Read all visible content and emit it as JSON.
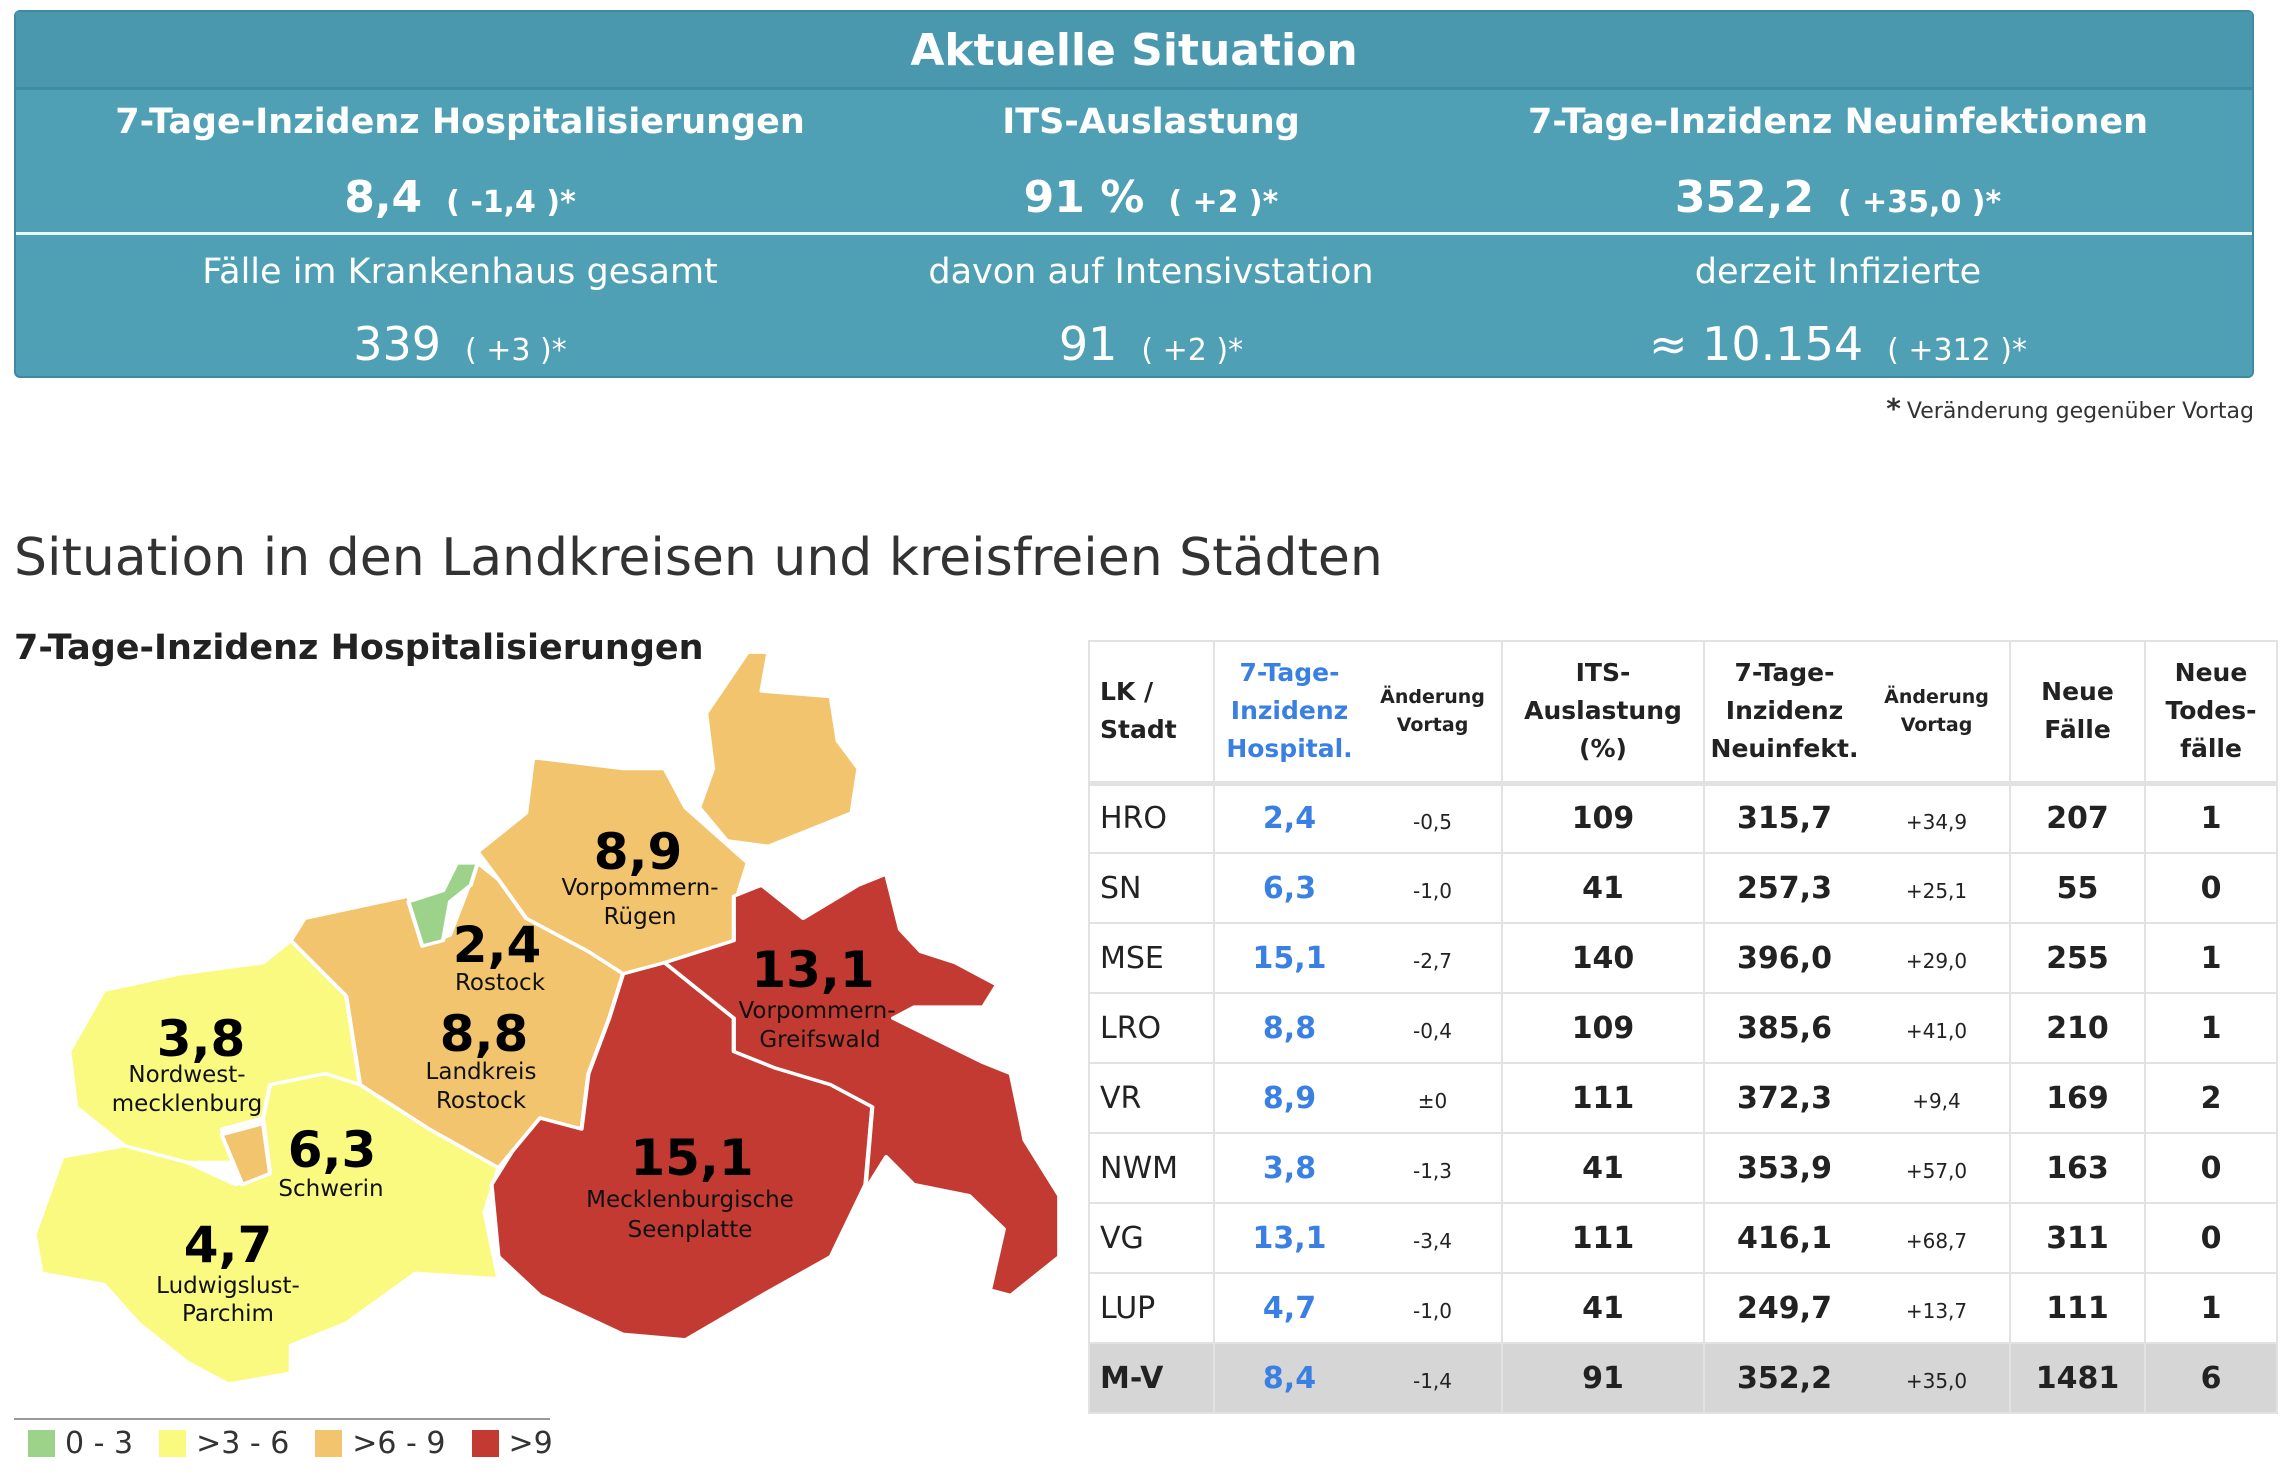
{
  "summary": {
    "title": "Aktuelle Situation",
    "kpis": [
      {
        "label": "7-Tage-Inzidenz Hospitalisierungen",
        "value": "8,4",
        "change": "( -1,4 )*"
      },
      {
        "label": "ITS-Auslastung",
        "value": "91 %",
        "change": "( +2 )*"
      },
      {
        "label": "7-Tage-Inzidenz Neuinfektionen",
        "value": "352,2",
        "change": "( +35,0 )*"
      }
    ],
    "stats": [
      {
        "label": "Fälle im Krankenhaus gesamt",
        "value": "339",
        "change": "( +3 )*"
      },
      {
        "label": "davon auf Intensivstation",
        "value": "91",
        "change": "( +2 )*"
      },
      {
        "label": "derzeit Infizierte",
        "value": "≈ 10.154",
        "change": "( +312 )*"
      }
    ],
    "footnote_mark": "*",
    "footnote": "Veränderung gegenüber Vortag"
  },
  "section_title": "Situation in den Landkreisen und kreisfreien Städten",
  "map": {
    "title": "7-Tage-Inzidenz Hospitalisierungen",
    "regions": [
      {
        "id": "VR",
        "value": "8,9",
        "name1": "Vorpommern-",
        "name2": "Rügen",
        "color": "#f2c46e"
      },
      {
        "id": "HRO",
        "value": "2,4",
        "name1": "Rostock",
        "name2": "",
        "color": "#9dd28a"
      },
      {
        "id": "LRO",
        "value": "8,8",
        "name1": "Landkreis",
        "name2": "Rostock",
        "color": "#f2c46e"
      },
      {
        "id": "NWM",
        "value": "3,8",
        "name1": "Nordwest-",
        "name2": "mecklenburg",
        "color": "#fafa80"
      },
      {
        "id": "SN",
        "value": "6,3",
        "name1": "Schwerin",
        "name2": "",
        "color": "#f2c46e"
      },
      {
        "id": "LUP",
        "value": "4,7",
        "name1": "Ludwigslust-",
        "name2": "Parchim",
        "color": "#fafa80"
      },
      {
        "id": "MSE",
        "value": "15,1",
        "name1": "Mecklenburgische",
        "name2": "Seenplatte",
        "color": "#c23a31"
      },
      {
        "id": "VG",
        "value": "13,1",
        "name1": "Vorpommern-",
        "name2": "Greifswald",
        "color": "#c23a31"
      }
    ],
    "legend": [
      {
        "label": "0 - 3",
        "color": "#9dd28a"
      },
      {
        "label": ">3 - 6",
        "color": "#fafa80"
      },
      {
        "label": ">6 - 9",
        "color": "#f2c46e"
      },
      {
        "label": ">9",
        "color": "#c23a31"
      }
    ]
  },
  "table": {
    "headers": {
      "lk": "LK / Stadt",
      "hosp": "7-Tage-Inzidenz Hospital.",
      "hosp_chg": "Änderung Vortag",
      "its": "ITS-Auslastung (%)",
      "neu": "7-Tage-Inzidenz Neuinfekt.",
      "neu_chg": "Änderung Vortag",
      "faelle": "Neue Fälle",
      "tod": "Neue Todes-fälle"
    },
    "rows": [
      {
        "lk": "HRO",
        "hosp": "2,4",
        "hosp_chg": "-0,5",
        "its": "109",
        "neu": "315,7",
        "neu_chg": "+34,9",
        "faelle": "207",
        "tod": "1"
      },
      {
        "lk": "SN",
        "hosp": "6,3",
        "hosp_chg": "-1,0",
        "its": "41",
        "neu": "257,3",
        "neu_chg": "+25,1",
        "faelle": "55",
        "tod": "0"
      },
      {
        "lk": "MSE",
        "hosp": "15,1",
        "hosp_chg": "-2,7",
        "its": "140",
        "neu": "396,0",
        "neu_chg": "+29,0",
        "faelle": "255",
        "tod": "1"
      },
      {
        "lk": "LRO",
        "hosp": "8,8",
        "hosp_chg": "-0,4",
        "its": "109",
        "neu": "385,6",
        "neu_chg": "+41,0",
        "faelle": "210",
        "tod": "1"
      },
      {
        "lk": "VR",
        "hosp": "8,9",
        "hosp_chg": "±0",
        "its": "111",
        "neu": "372,3",
        "neu_chg": "+9,4",
        "faelle": "169",
        "tod": "2"
      },
      {
        "lk": "NWM",
        "hosp": "3,8",
        "hosp_chg": "-1,3",
        "its": "41",
        "neu": "353,9",
        "neu_chg": "+57,0",
        "faelle": "163",
        "tod": "0"
      },
      {
        "lk": "VG",
        "hosp": "13,1",
        "hosp_chg": "-3,4",
        "its": "111",
        "neu": "416,1",
        "neu_chg": "+68,7",
        "faelle": "311",
        "tod": "0"
      },
      {
        "lk": "LUP",
        "hosp": "4,7",
        "hosp_chg": "-1,0",
        "its": "41",
        "neu": "249,7",
        "neu_chg": "+13,7",
        "faelle": "111",
        "tod": "1"
      }
    ],
    "total": {
      "lk": "M-V",
      "hosp": "8,4",
      "hosp_chg": "-1,4",
      "its": "91",
      "neu": "352,2",
      "neu_chg": "+35,0",
      "faelle": "1481",
      "tod": "6"
    }
  }
}
